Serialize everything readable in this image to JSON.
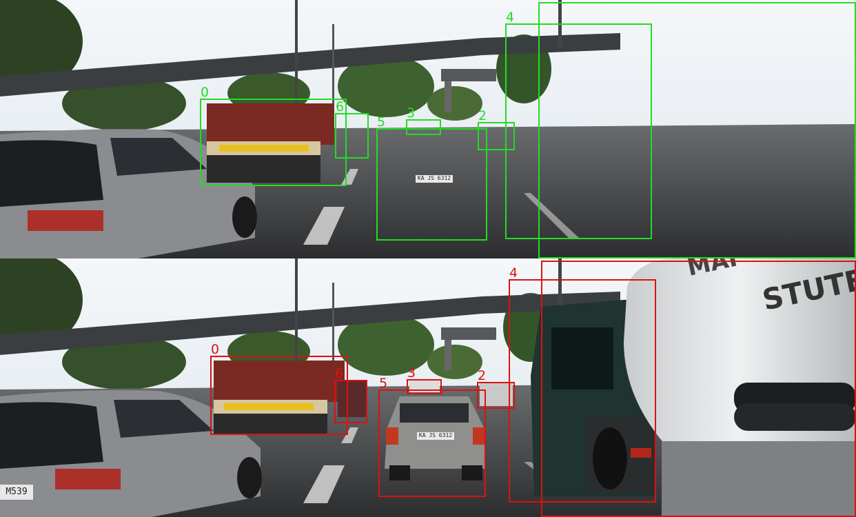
{
  "panels": [
    {
      "id": "top",
      "color": "#22dd22",
      "boxes": [
        {
          "label": "0"
        },
        {
          "label": "6"
        },
        {
          "label": "5"
        },
        {
          "label": "3"
        },
        {
          "label": "2"
        },
        {
          "label": "4"
        },
        {
          "label": ""
        }
      ]
    },
    {
      "id": "bottom",
      "color": "#dd1111",
      "boxes": [
        {
          "label": "0"
        },
        {
          "label": "6"
        },
        {
          "label": "5"
        },
        {
          "label": "3"
        },
        {
          "label": "2"
        },
        {
          "label": "4"
        },
        {
          "label": ""
        }
      ]
    }
  ],
  "scene_text": {
    "plate_center_car": "KA JS 6312",
    "plate_left_car": "M539",
    "truck_text": "STUTEN",
    "truck_text_2": "MAI"
  }
}
